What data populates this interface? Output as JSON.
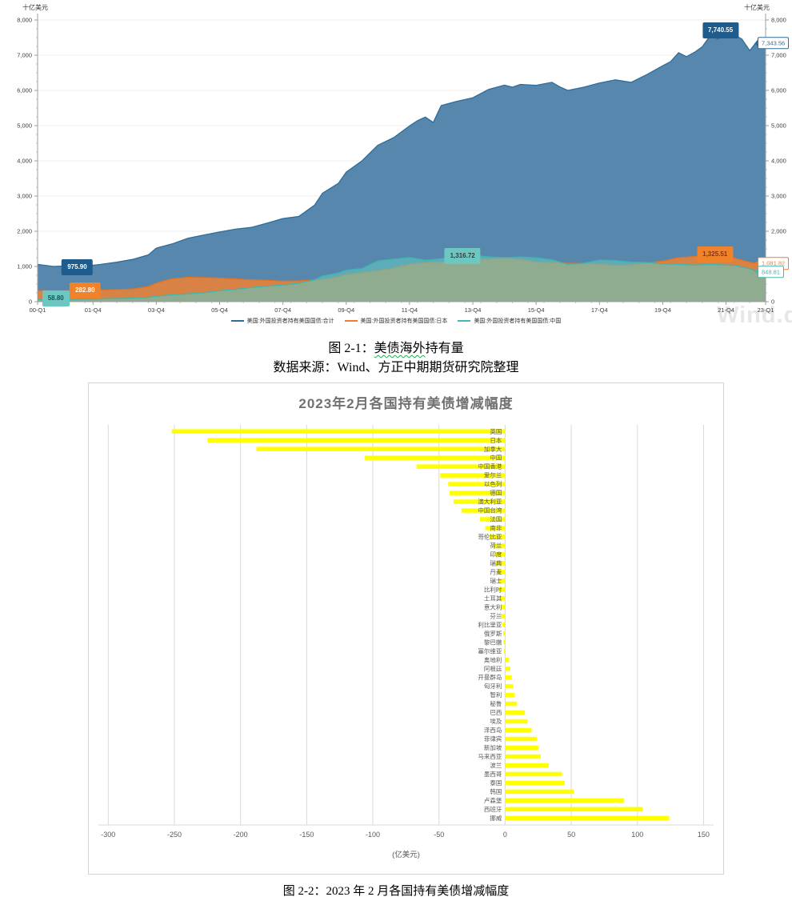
{
  "watermark": "Wind.d",
  "fig1": {
    "unit_left": "十亿美元",
    "unit_right": "十亿美元",
    "y_tick_labels": [
      "0",
      "1,000",
      "2,000",
      "3,000",
      "4,000",
      "5,000",
      "6,000",
      "7,000",
      "8,000"
    ],
    "x_tick_labels": [
      "00-Q1",
      "01-Q4",
      "03-Q4",
      "05-Q4",
      "07-Q4",
      "09-Q4",
      "11-Q4",
      "13-Q4",
      "15-Q4",
      "17-Q4",
      "19-Q4",
      "21-Q4",
      "23-Q1"
    ],
    "x_tick_quarters": [
      0,
      7,
      15,
      23,
      31,
      39,
      47,
      55,
      63,
      71,
      79,
      87,
      92
    ],
    "legend": [
      {
        "label": "美国:外国投资者持有美国国债:合计",
        "color": "#2e6d99"
      },
      {
        "label": "美国:外国投资者持有美国国债:日本",
        "color": "#ed7d31"
      },
      {
        "label": "美国:外国投资者持有美国国债:中国",
        "color": "#45b8b2"
      }
    ],
    "point_labels": [
      {
        "text": "975.90",
        "bg": "#1d5c8c",
        "fg": "#ffffff",
        "q": 5,
        "v": 980
      },
      {
        "text": "282.80",
        "bg": "#f08329",
        "fg": "#ffffff",
        "q": 6,
        "v": 318
      },
      {
        "text": "58.80",
        "bg": "#6cc7c1",
        "fg": "#14555a",
        "q": 2.3,
        "v": 102
      },
      {
        "text": "1,316.72",
        "bg": "#6cc7c1",
        "fg": "#3c3c3c",
        "q": 53.7,
        "v": 1295
      },
      {
        "text": "7,740.55",
        "bg": "#1d5c8c",
        "fg": "#ffffff",
        "q": 86.3,
        "v": 7705
      },
      {
        "text": "1,325.51",
        "bg": "#f08329",
        "fg": "#83341c",
        "q": 85.6,
        "v": 1341
      }
    ],
    "callouts": [
      {
        "text": "7,343.56",
        "color": "#2e6d99",
        "v": 7343.56
      },
      {
        "text": "1,081.82",
        "color": "#ed7d31",
        "v": 1081.82
      },
      {
        "text": "848.81",
        "color": "#45b8b2",
        "v": 848.81
      }
    ]
  },
  "chart_data": [
    {
      "type": "area",
      "title": "美债海外持有量",
      "x_range": [
        "2000-Q1",
        "2023-Q1"
      ],
      "y_unit": "十亿美元",
      "ylim": [
        0,
        8000
      ],
      "series": [
        {
          "name": "美国:外国投资者持有美国国债:合计",
          "color": "#2e6d99",
          "fill": "#4e81a8",
          "fill_opacity": 0.95,
          "labeled_points": {
            "2000Q1": 975.9,
            "2021Q4_peak": 7740.55,
            "2023Q1": 7343.56
          },
          "points": [
            [
              0,
              1060
            ],
            [
              2,
              1000
            ],
            [
              4,
              1020
            ],
            [
              6,
              1010
            ],
            [
              8,
              1060
            ],
            [
              10,
              1120
            ],
            [
              12,
              1200
            ],
            [
              14,
              1330
            ],
            [
              15,
              1520
            ],
            [
              17,
              1640
            ],
            [
              19,
              1800
            ],
            [
              21,
              1890
            ],
            [
              23,
              1980
            ],
            [
              25,
              2060
            ],
            [
              27,
              2110
            ],
            [
              29,
              2230
            ],
            [
              31,
              2360
            ],
            [
              33,
              2420
            ],
            [
              35,
              2740
            ],
            [
              36,
              3080
            ],
            [
              38,
              3360
            ],
            [
              39,
              3680
            ],
            [
              41,
              4000
            ],
            [
              43,
              4440
            ],
            [
              45,
              4660
            ],
            [
              47,
              4990
            ],
            [
              48,
              5140
            ],
            [
              49,
              5240
            ],
            [
              50,
              5090
            ],
            [
              51,
              5570
            ],
            [
              53,
              5690
            ],
            [
              55,
              5790
            ],
            [
              57,
              6030
            ],
            [
              59,
              6150
            ],
            [
              60,
              6090
            ],
            [
              61,
              6170
            ],
            [
              63,
              6145
            ],
            [
              65,
              6230
            ],
            [
              66,
              6100
            ],
            [
              67,
              6000
            ],
            [
              69,
              6090
            ],
            [
              71,
              6210
            ],
            [
              73,
              6300
            ],
            [
              75,
              6230
            ],
            [
              77,
              6450
            ],
            [
              79,
              6700
            ],
            [
              80,
              6820
            ],
            [
              81,
              7070
            ],
            [
              82,
              6960
            ],
            [
              83,
              7080
            ],
            [
              84,
              7240
            ],
            [
              85,
              7560
            ],
            [
              86,
              7460
            ],
            [
              87,
              7740.55
            ],
            [
              88,
              7590
            ],
            [
              89,
              7460
            ],
            [
              90,
              7130
            ],
            [
              91,
              7420
            ],
            [
              92,
              7343.56
            ]
          ]
        },
        {
          "name": "美国:外国投资者持有美国国债:日本",
          "color": "#e8731d",
          "fill": "#ee8233",
          "fill_opacity": 0.85,
          "labeled_points": {
            "2000Q1": 282.8,
            "peak": 1325.51,
            "2023Q1": 1081.82
          },
          "points": [
            [
              0,
              317
            ],
            [
              2,
              302
            ],
            [
              4,
              308
            ],
            [
              6,
              318
            ],
            [
              8,
              330
            ],
            [
              10,
              342
            ],
            [
              12,
              360
            ],
            [
              14,
              430
            ],
            [
              15,
              525
            ],
            [
              17,
              650
            ],
            [
              19,
              690
            ],
            [
              21,
              683
            ],
            [
              23,
              670
            ],
            [
              25,
              644
            ],
            [
              27,
              622
            ],
            [
              29,
              605
            ],
            [
              31,
              582
            ],
            [
              33,
              592
            ],
            [
              35,
              617
            ],
            [
              36,
              626
            ],
            [
              38,
              700
            ],
            [
              39,
              766
            ],
            [
              41,
              821
            ],
            [
              43,
              882
            ],
            [
              45,
              955
            ],
            [
              47,
              1058
            ],
            [
              49,
              1105
            ],
            [
              51,
              1115
            ],
            [
              53,
              1150
            ],
            [
              55,
              1182
            ],
            [
              57,
              1210
            ],
            [
              59,
              1231
            ],
            [
              61,
              1197
            ],
            [
              63,
              1123
            ],
            [
              65,
              1108
            ],
            [
              67,
              1091
            ],
            [
              69,
              1082
            ],
            [
              71,
              1061
            ],
            [
              73,
              1032
            ],
            [
              75,
              1042
            ],
            [
              77,
              1092
            ],
            [
              79,
              1155
            ],
            [
              81,
              1251
            ],
            [
              83,
              1282
            ],
            [
              85,
              1312
            ],
            [
              86,
              1325.51
            ],
            [
              87,
              1304
            ],
            [
              88,
              1240
            ],
            [
              89,
              1180
            ],
            [
              90,
              1120
            ],
            [
              91,
              1076
            ],
            [
              92,
              1081.82
            ]
          ]
        },
        {
          "name": "美国:外国投资者持有美国国债:中国",
          "color": "#3eb6af",
          "fill": "#63c4be",
          "fill_opacity": 0.62,
          "labeled_points": {
            "2000Q1": 58.8,
            "2013_peak": 1316.72,
            "2023Q1": 848.81
          },
          "points": [
            [
              0,
              60
            ],
            [
              2,
              63
            ],
            [
              4,
              67
            ],
            [
              6,
              74
            ],
            [
              8,
              82
            ],
            [
              10,
              90
            ],
            [
              12,
              100
            ],
            [
              14,
              122
            ],
            [
              15,
              159
            ],
            [
              17,
              193
            ],
            [
              19,
              222
            ],
            [
              21,
              255
            ],
            [
              23,
              310
            ],
            [
              25,
              352
            ],
            [
              27,
              400
            ],
            [
              29,
              442
            ],
            [
              31,
              478
            ],
            [
              33,
              522
            ],
            [
              35,
              618
            ],
            [
              36,
              727
            ],
            [
              38,
              812
            ],
            [
              39,
              895
            ],
            [
              41,
              940
            ],
            [
              43,
              1160
            ],
            [
              45,
              1205
            ],
            [
              47,
              1255
            ],
            [
              49,
              1175
            ],
            [
              51,
              1220
            ],
            [
              53,
              1275
            ],
            [
              55,
              1316.72
            ],
            [
              57,
              1272
            ],
            [
              59,
              1252
            ],
            [
              61,
              1271
            ],
            [
              63,
              1246
            ],
            [
              65,
              1192
            ],
            [
              67,
              1058
            ],
            [
              69,
              1092
            ],
            [
              71,
              1181
            ],
            [
              73,
              1165
            ],
            [
              75,
              1121
            ],
            [
              77,
              1113
            ],
            [
              79,
              1070
            ],
            [
              81,
              1062
            ],
            [
              83,
              1041
            ],
            [
              85,
              1062
            ],
            [
              87,
              1040
            ],
            [
              88,
              1033
            ],
            [
              89,
              981
            ],
            [
              90,
              933
            ],
            [
              91,
              862
            ],
            [
              92,
              848.81
            ]
          ]
        }
      ]
    },
    {
      "type": "bar-horizontal",
      "title": "2023年2月各国持有美债增减幅度",
      "xlabel": "(亿美元)",
      "xlim": [
        -300,
        150
      ],
      "x_ticks": [
        -300,
        -250,
        -200,
        -150,
        -100,
        -50,
        0,
        50,
        100,
        150
      ],
      "bar_color": "#ffff00",
      "label_color": "#595959",
      "categories": [
        "英国",
        "日本",
        "加拿大",
        "中国",
        "中国香港",
        "爱尔兰",
        "以色列",
        "德国",
        "澳大利亚",
        "中国台湾",
        "法国",
        "南非",
        "哥伦比亚",
        "荷兰",
        "印度",
        "瑞典",
        "丹麦",
        "瑞士",
        "比利时",
        "土耳其",
        "意大利",
        "芬兰",
        "利比里亚",
        "俄罗斯",
        "黎巴嫩",
        "塞尔维亚",
        "奥地利",
        "阿根廷",
        "开曼群岛",
        "匈牙利",
        "智利",
        "秘鲁",
        "巴西",
        "埃及",
        "泽西岛",
        "菲律宾",
        "新加坡",
        "马来西亚",
        "波兰",
        "墨西哥",
        "泰国",
        "韩国",
        "卢森堡",
        "西班牙",
        "挪威"
      ],
      "values": [
        -252,
        -225,
        -188,
        -106,
        -67,
        -49,
        -43,
        -42,
        -39,
        -33,
        -19,
        -15,
        -12,
        -9,
        -8,
        -7,
        -6,
        -5,
        -4.5,
        -4,
        -3.5,
        -3,
        -2,
        -1.5,
        -1.2,
        -0.8,
        3,
        4,
        5,
        6,
        7,
        9,
        15,
        17,
        20,
        24,
        25,
        27,
        33,
        43,
        45,
        52,
        90,
        104,
        124
      ]
    }
  ],
  "captions": {
    "fig1": {
      "prefix": "图 2-1：",
      "underline": "美债海外",
      "suffix": "持有量"
    },
    "source": "数据来源：Wind、方正中期期货研究院整理",
    "fig2": "图 2-2：2023 年 2 月各国持有美债增减幅度"
  }
}
